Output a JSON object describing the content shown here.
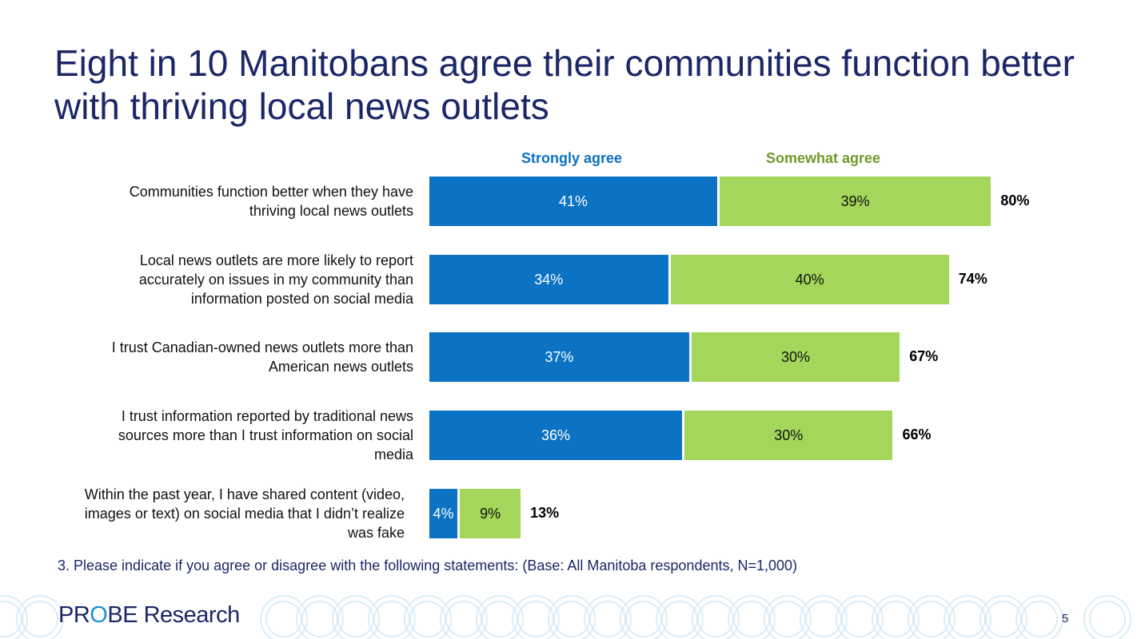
{
  "title": "Eight in 10 Manitobans agree their communities function better with thriving local news outlets",
  "chart_data": {
    "type": "bar",
    "orientation": "horizontal",
    "stacked": true,
    "categories": [
      "Communities function better when they have thriving local news outlets",
      "Local news outlets are more likely to report accurately on issues in my community than information posted on social media",
      "I trust Canadian-owned news outlets more than American news outlets",
      "I trust information reported by traditional news sources more than I trust information on social media",
      "Within the past year, I have shared content (video, images or text) on social media that I didn’t realize was fake"
    ],
    "series": [
      {
        "name": "Strongly agree",
        "color": "#0b72c4",
        "values": [
          41,
          34,
          37,
          36,
          4
        ]
      },
      {
        "name": "Somewhat agree",
        "color": "#a3d65a",
        "values": [
          39,
          40,
          30,
          30,
          9
        ]
      }
    ],
    "totals": [
      80,
      74,
      67,
      66,
      13
    ],
    "unit": "%",
    "legend_placement": "top",
    "grid": false
  },
  "legend_colors": {
    "strongly_text": "#0b72c4",
    "somewhat_text": "#6f9b2c"
  },
  "footnote": "3. Please indicate if you agree or disagree with the following statements: (Base: All Manitoba respondents, N=1,000)",
  "logo": {
    "text": "PROBE Research"
  },
  "page_number": "5"
}
